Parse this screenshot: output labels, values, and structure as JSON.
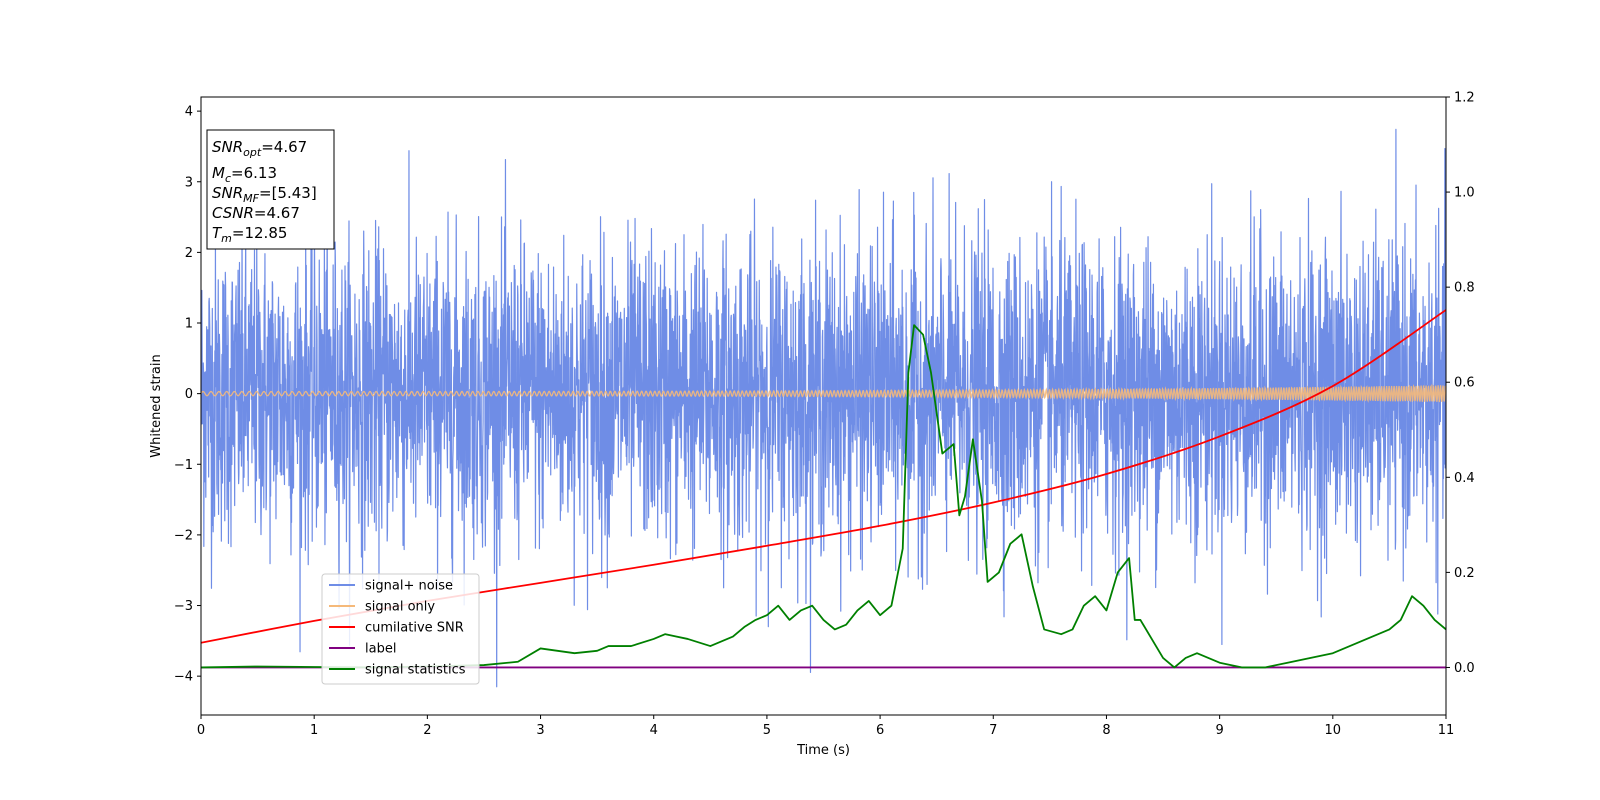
{
  "chart_data": {
    "type": "line",
    "xlabel": "Time (s)",
    "ylabel": "Whitened strain",
    "xlim": [
      0,
      11
    ],
    "ylim_left": [
      -4.55,
      4.2
    ],
    "ylim_right": [
      -0.1,
      1.2
    ],
    "x_ticks": [
      0,
      1,
      2,
      3,
      4,
      5,
      6,
      7,
      8,
      9,
      10,
      11
    ],
    "y_ticks_left": [
      -4,
      -3,
      -2,
      -1,
      0,
      1,
      2,
      3,
      4
    ],
    "y_ticks_right": [
      0.0,
      0.2,
      0.4,
      0.6,
      0.8,
      1.0,
      1.2
    ],
    "grid": false,
    "legend_position": "lower-left",
    "stats_box": {
      "snr_opt": {
        "base": "SNR",
        "sub": "opt",
        "value": "=4.67"
      },
      "mc": {
        "base": "M",
        "sub": "c",
        "value": "=6.13"
      },
      "snr_mf": {
        "base": "SNR",
        "sub": "MF",
        "value": "=[5.43]"
      },
      "csnr": {
        "base": "CSNR",
        "sub": "",
        "value": "=4.67"
      },
      "tm": {
        "base": "T",
        "sub": "m",
        "value": "=12.85"
      }
    },
    "series": [
      {
        "name": "signal+ noise",
        "color": "#6f8de6",
        "axis": "left",
        "kind": "noise",
        "noise_sigma": 1.05,
        "noise_peak_range": [
          -4.15,
          3.82
        ]
      },
      {
        "name": "signal only",
        "color": "#f5b97a",
        "axis": "left",
        "kind": "chirp",
        "amplitude_start": 0.03,
        "amplitude_end": 0.12
      },
      {
        "name": "cumilative SNR",
        "color": "#ff0000",
        "axis": "right",
        "x": [
          0,
          1,
          2,
          3,
          4,
          5,
          6,
          7,
          8,
          9,
          10,
          11
        ],
        "y": [
          0.052,
          0.098,
          0.14,
          0.178,
          0.216,
          0.256,
          0.298,
          0.347,
          0.407,
          0.486,
          0.592,
          0.752
        ]
      },
      {
        "name": "label",
        "color": "#800080",
        "axis": "right",
        "x": [
          0,
          11
        ],
        "y": [
          0.0,
          0.0
        ]
      },
      {
        "name": "signal statistics",
        "color": "#008000",
        "axis": "right",
        "x": [
          0,
          0.5,
          1,
          1.5,
          2,
          2.5,
          2.8,
          3.0,
          3.3,
          3.5,
          3.6,
          3.8,
          4.0,
          4.1,
          4.3,
          4.5,
          4.7,
          4.8,
          4.9,
          5.0,
          5.1,
          5.2,
          5.3,
          5.4,
          5.5,
          5.6,
          5.7,
          5.8,
          5.9,
          6.0,
          6.1,
          6.2,
          6.25,
          6.3,
          6.38,
          6.45,
          6.55,
          6.65,
          6.7,
          6.75,
          6.82,
          6.9,
          6.95,
          7.05,
          7.15,
          7.25,
          7.35,
          7.45,
          7.6,
          7.7,
          7.8,
          7.9,
          8.0,
          8.1,
          8.2,
          8.25,
          8.3,
          8.4,
          8.5,
          8.6,
          8.7,
          8.8,
          8.9,
          9.0,
          9.2,
          9.4,
          9.6,
          9.8,
          10.0,
          10.2,
          10.4,
          10.5,
          10.6,
          10.7,
          10.8,
          10.9,
          11.0
        ],
        "y": [
          0.0,
          0.002,
          0.001,
          0.0,
          0.002,
          0.005,
          0.012,
          0.04,
          0.03,
          0.035,
          0.045,
          0.045,
          0.06,
          0.07,
          0.06,
          0.045,
          0.065,
          0.085,
          0.1,
          0.11,
          0.13,
          0.1,
          0.12,
          0.13,
          0.1,
          0.08,
          0.09,
          0.12,
          0.14,
          0.11,
          0.13,
          0.25,
          0.62,
          0.72,
          0.7,
          0.62,
          0.45,
          0.47,
          0.32,
          0.36,
          0.48,
          0.35,
          0.18,
          0.2,
          0.26,
          0.28,
          0.17,
          0.08,
          0.07,
          0.08,
          0.13,
          0.15,
          0.12,
          0.2,
          0.23,
          0.1,
          0.1,
          0.06,
          0.02,
          0.0,
          0.02,
          0.03,
          0.02,
          0.01,
          0.0,
          0.0,
          0.01,
          0.02,
          0.03,
          0.05,
          0.07,
          0.08,
          0.1,
          0.15,
          0.13,
          0.1,
          0.08
        ]
      }
    ]
  }
}
